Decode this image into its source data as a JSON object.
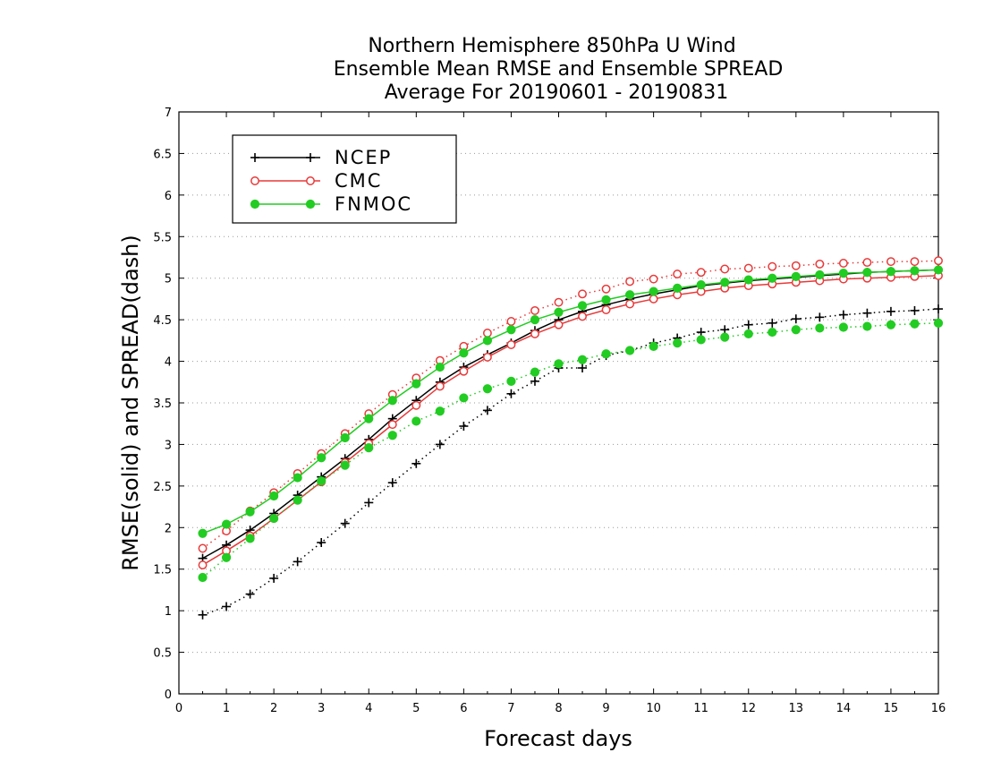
{
  "chart_data": {
    "type": "line",
    "title": [
      "Northern Hemisphere 850hPa U Wind",
      "Ensemble Mean RMSE and Ensemble SPREAD",
      "Average For 20190601 - 20190831"
    ],
    "xlabel": "Forecast days",
    "ylabel": "RMSE(solid) and SPREAD(dash)",
    "xlim": [
      0,
      16
    ],
    "ylim": [
      0,
      7
    ],
    "xticks": [
      "0",
      "1",
      "2",
      "3",
      "4",
      "5",
      "6",
      "7",
      "8",
      "9",
      "10",
      "11",
      "12",
      "13",
      "14",
      "15",
      "16"
    ],
    "yticks": [
      "0",
      "0.5",
      "1",
      "1.5",
      "2",
      "2.5",
      "3",
      "3.5",
      "4",
      "4.5",
      "5",
      "5.5",
      "6",
      "6.5",
      "7"
    ],
    "grid": "horizontal dotted",
    "legend_position": "top-left",
    "x": [
      0.5,
      1,
      1.5,
      2,
      2.5,
      3,
      3.5,
      4,
      4.5,
      5,
      5.5,
      6,
      6.5,
      7,
      7.5,
      8,
      8.5,
      9,
      9.5,
      10,
      10.5,
      11,
      11.5,
      12,
      12.5,
      13,
      13.5,
      14,
      14.5,
      15,
      15.5,
      16
    ],
    "series": [
      {
        "name": "NCEP",
        "color": "#000000",
        "marker": "plus",
        "rmse": [
          1.63,
          1.79,
          1.97,
          2.17,
          2.39,
          2.61,
          2.83,
          3.06,
          3.31,
          3.53,
          3.75,
          3.93,
          4.08,
          4.22,
          4.37,
          4.5,
          4.6,
          4.68,
          4.75,
          4.81,
          4.86,
          4.91,
          4.94,
          4.97,
          4.99,
          5.01,
          5.03,
          5.05,
          5.07,
          5.08,
          5.09,
          5.1
        ],
        "spread": [
          0.95,
          1.05,
          1.2,
          1.39,
          1.59,
          1.82,
          2.05,
          2.3,
          2.54,
          2.77,
          3.0,
          3.22,
          3.41,
          3.61,
          3.76,
          3.92,
          3.92,
          4.07,
          4.13,
          4.22,
          4.28,
          4.35,
          4.38,
          4.44,
          4.46,
          4.51,
          4.53,
          4.56,
          4.58,
          4.6,
          4.61,
          4.63
        ]
      },
      {
        "name": "CMC",
        "color": "#e83a3a",
        "marker": "open-circle",
        "rmse": [
          1.55,
          1.72,
          1.9,
          2.11,
          2.33,
          2.55,
          2.78,
          3.01,
          3.24,
          3.47,
          3.7,
          3.88,
          4.05,
          4.2,
          4.33,
          4.44,
          4.54,
          4.62,
          4.69,
          4.75,
          4.8,
          4.84,
          4.88,
          4.91,
          4.93,
          4.95,
          4.97,
          4.99,
          5.0,
          5.01,
          5.02,
          5.03
        ],
        "spread": [
          1.75,
          1.96,
          2.2,
          2.42,
          2.65,
          2.89,
          3.13,
          3.37,
          3.6,
          3.8,
          4.01,
          4.18,
          4.34,
          4.48,
          4.61,
          4.71,
          4.81,
          4.87,
          4.96,
          4.99,
          5.05,
          5.07,
          5.11,
          5.12,
          5.14,
          5.15,
          5.17,
          5.18,
          5.19,
          5.2,
          5.2,
          5.21
        ]
      },
      {
        "name": "FNMOC",
        "color": "#22cc22",
        "marker": "filled-circle",
        "rmse": [
          1.93,
          2.04,
          2.19,
          2.38,
          2.6,
          2.84,
          3.08,
          3.31,
          3.53,
          3.73,
          3.93,
          4.1,
          4.25,
          4.38,
          4.5,
          4.59,
          4.67,
          4.74,
          4.8,
          4.84,
          4.88,
          4.92,
          4.95,
          4.98,
          5.0,
          5.02,
          5.04,
          5.06,
          5.07,
          5.08,
          5.09,
          5.1
        ],
        "spread": [
          1.4,
          1.64,
          1.87,
          2.11,
          2.33,
          2.56,
          2.75,
          2.96,
          3.11,
          3.28,
          3.4,
          3.56,
          3.67,
          3.76,
          3.87,
          3.97,
          4.02,
          4.09,
          4.13,
          4.18,
          4.22,
          4.26,
          4.29,
          4.33,
          4.35,
          4.38,
          4.4,
          4.41,
          4.42,
          4.44,
          4.45,
          4.46
        ]
      }
    ]
  }
}
